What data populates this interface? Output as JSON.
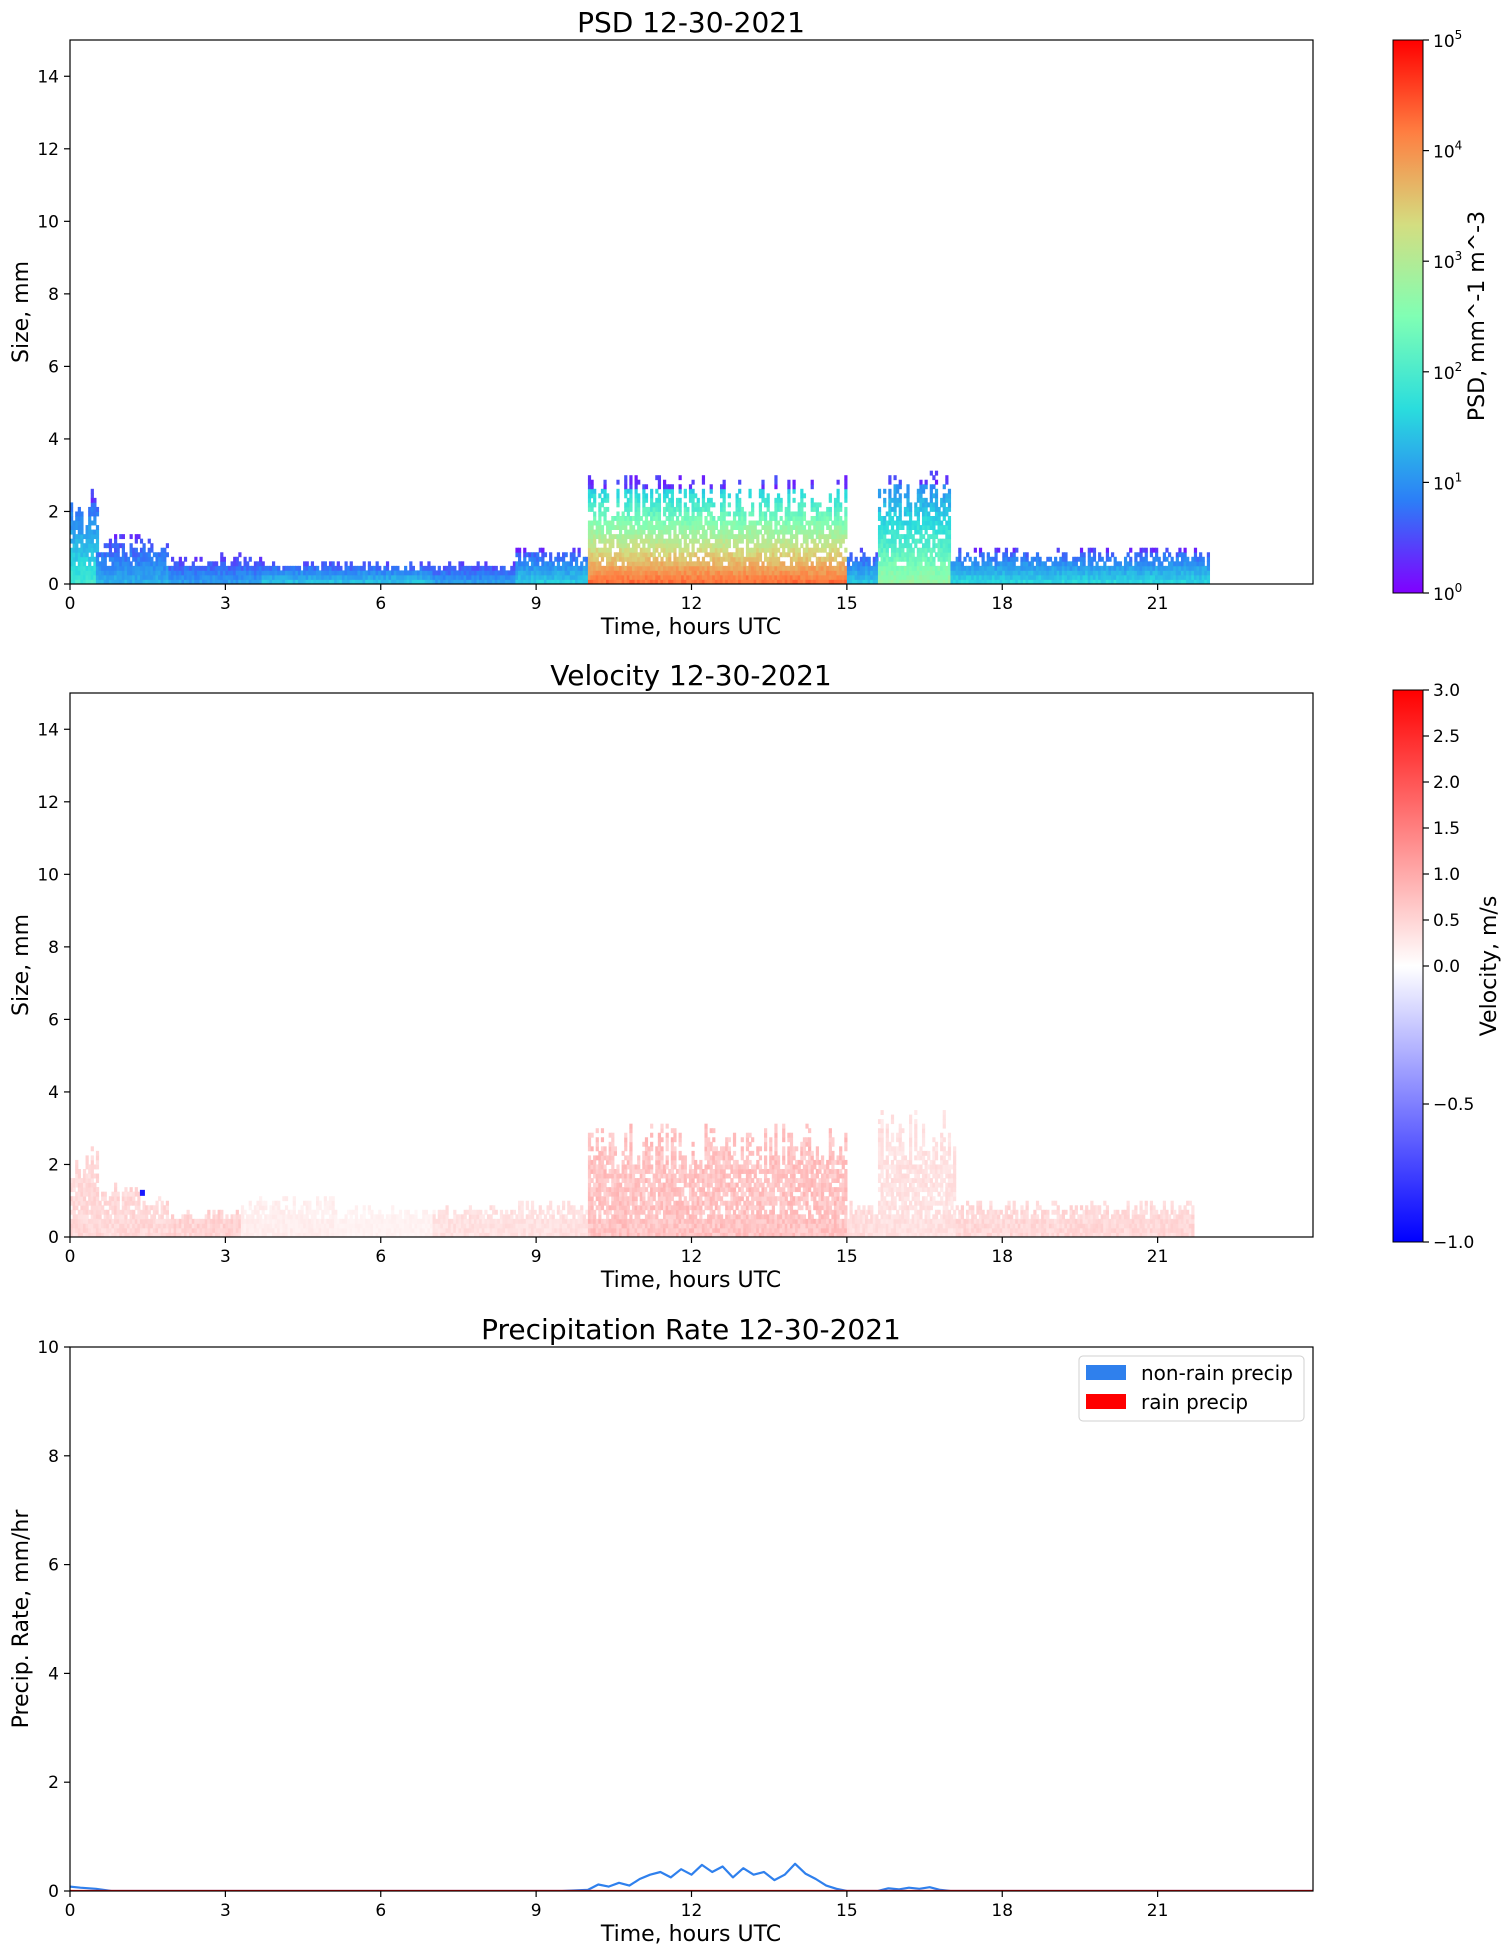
{
  "chart_data": [
    {
      "type": "heatmap",
      "title": "PSD 12-30-2021",
      "xlabel": "Time, hours UTC",
      "ylabel": "Size, mm",
      "xlim": [
        0,
        24
      ],
      "ylim": [
        0,
        15
      ],
      "xticks": [
        "0",
        "3",
        "6",
        "9",
        "12",
        "15",
        "18",
        "21"
      ],
      "yticks": [
        "0",
        "2",
        "4",
        "6",
        "8",
        "10",
        "12",
        "14"
      ],
      "colorbar": {
        "label": "PSD, mm^-1 m^-3",
        "scale": "log",
        "range": [
          1,
          100000
        ],
        "ticks": [
          "10",
          "10",
          "10",
          "10",
          "10",
          "10"
        ],
        "tick_exponents": [
          "0",
          "1",
          "2",
          "3",
          "4",
          "5"
        ],
        "colormap": "rainbow",
        "colors": [
          "#8000ff",
          "#2c7ef7",
          "#2adddd",
          "#80ffb4",
          "#d4dd80",
          "#ff7e41",
          "#ff0000"
        ]
      },
      "regions": [
        {
          "t0": 0.0,
          "t1": 0.5,
          "dmax": 2.6,
          "intensity": 0.38
        },
        {
          "t0": 0.5,
          "t1": 1.9,
          "dmax": 1.4,
          "intensity": 0.25
        },
        {
          "t0": 1.9,
          "t1": 3.7,
          "dmax": 0.8,
          "intensity": 0.22
        },
        {
          "t0": 3.7,
          "t1": 7.0,
          "dmax": 0.6,
          "intensity": 0.28
        },
        {
          "t0": 7.0,
          "t1": 8.6,
          "dmax": 0.6,
          "intensity": 0.22
        },
        {
          "t0": 8.6,
          "t1": 10.0,
          "dmax": 1.0,
          "intensity": 0.3
        },
        {
          "t0": 10.0,
          "t1": 15.0,
          "dmax": 3.0,
          "intensity": 0.85
        },
        {
          "t0": 15.0,
          "t1": 15.6,
          "dmax": 0.9,
          "intensity": 0.3
        },
        {
          "t0": 15.6,
          "t1": 17.0,
          "dmax": 3.1,
          "intensity": 0.55
        },
        {
          "t0": 17.0,
          "t1": 22.0,
          "dmax": 1.0,
          "intensity": 0.32
        }
      ]
    },
    {
      "type": "heatmap",
      "title": "Velocity 12-30-2021",
      "xlabel": "Time, hours UTC",
      "ylabel": "Size, mm",
      "xlim": [
        0,
        24
      ],
      "ylim": [
        0,
        15
      ],
      "xticks": [
        "0",
        "3",
        "6",
        "9",
        "12",
        "15",
        "18",
        "21"
      ],
      "yticks": [
        "0",
        "2",
        "4",
        "6",
        "8",
        "10",
        "12",
        "14"
      ],
      "colorbar": {
        "label": "Velocity, m/s",
        "scale": "two-slope",
        "range": [
          -1.0,
          3.0
        ],
        "center": 0.0,
        "ticks": [
          "3.0",
          "2.5",
          "2.0",
          "1.5",
          "1.0",
          "0.5",
          "0.0",
          "−0.5",
          "−1.0"
        ],
        "tick_values": [
          3.0,
          2.5,
          2.0,
          1.5,
          1.0,
          0.5,
          0.0,
          -0.5,
          -1.0
        ],
        "colormap": "bwr",
        "colors": [
          "#0000ff",
          "#ffffff",
          "#ff0000"
        ]
      },
      "regions": [
        {
          "t0": 0.0,
          "t1": 0.5,
          "dmax": 2.7,
          "velocity": 0.45
        },
        {
          "t0": 0.5,
          "t1": 1.9,
          "dmax": 1.4,
          "velocity": 0.45
        },
        {
          "t0": 1.9,
          "t1": 3.3,
          "dmax": 0.7,
          "velocity": 0.5
        },
        {
          "t0": 3.3,
          "t1": 5.1,
          "dmax": 1.1,
          "velocity": 0.2
        },
        {
          "t0": 5.1,
          "t1": 7.0,
          "dmax": 0.8,
          "velocity": 0.15
        },
        {
          "t0": 7.0,
          "t1": 8.6,
          "dmax": 0.8,
          "velocity": 0.35
        },
        {
          "t0": 8.6,
          "t1": 10.0,
          "dmax": 1.0,
          "velocity": 0.35
        },
        {
          "t0": 10.0,
          "t1": 15.0,
          "dmax": 3.1,
          "velocity": 0.7
        },
        {
          "t0": 15.0,
          "t1": 15.6,
          "dmax": 1.0,
          "velocity": 0.4
        },
        {
          "t0": 15.6,
          "t1": 17.1,
          "dmax": 3.5,
          "velocity": 0.35
        },
        {
          "t0": 17.1,
          "t1": 21.7,
          "dmax": 1.0,
          "velocity": 0.45
        }
      ]
    },
    {
      "type": "line",
      "title": "Precipitation Rate 12-30-2021",
      "xlabel": "Time, hours UTC",
      "ylabel": "Precip. Rate, mm/hr",
      "xlim": [
        0,
        24
      ],
      "ylim": [
        0,
        10
      ],
      "xticks": [
        "0",
        "3",
        "6",
        "9",
        "12",
        "15",
        "18",
        "21"
      ],
      "yticks": [
        "0",
        "2",
        "4",
        "6",
        "8",
        "10"
      ],
      "legend_position": "top-right",
      "series": [
        {
          "name": "non-rain precip",
          "color": "#2f80ed",
          "x": [
            0.0,
            0.2,
            0.5,
            0.8,
            9.5,
            10.0,
            10.2,
            10.4,
            10.6,
            10.8,
            11.0,
            11.2,
            11.4,
            11.6,
            11.8,
            12.0,
            12.2,
            12.4,
            12.6,
            12.8,
            13.0,
            13.2,
            13.4,
            13.6,
            13.8,
            14.0,
            14.2,
            14.4,
            14.6,
            14.8,
            15.0,
            15.6,
            15.8,
            16.0,
            16.2,
            16.4,
            16.6,
            16.8,
            17.0,
            24.0
          ],
          "y": [
            0.08,
            0.06,
            0.04,
            0.0,
            0.0,
            0.02,
            0.12,
            0.08,
            0.15,
            0.1,
            0.22,
            0.3,
            0.35,
            0.25,
            0.4,
            0.3,
            0.48,
            0.35,
            0.45,
            0.25,
            0.42,
            0.3,
            0.35,
            0.2,
            0.3,
            0.5,
            0.32,
            0.22,
            0.1,
            0.04,
            0.0,
            0.0,
            0.05,
            0.03,
            0.06,
            0.04,
            0.07,
            0.02,
            0.0,
            0.0
          ]
        },
        {
          "name": "rain precip",
          "color": "#ff0000",
          "x": [
            0,
            24
          ],
          "y": [
            0,
            0
          ]
        }
      ]
    }
  ]
}
